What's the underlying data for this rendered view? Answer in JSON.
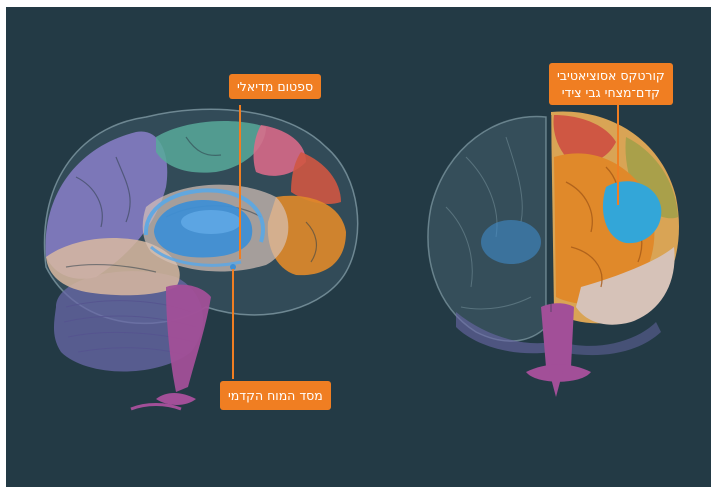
{
  "labels": {
    "medial_septum": "ספטום מדיאלי",
    "basal_forebrain": "מסד המוח הקדמי",
    "cortex_line1": "קורטקס אסוציאטיבי",
    "cortex_line2": "קדם־מצחי גבי צידי"
  },
  "colors": {
    "background": "#233a45",
    "label_fill": "#f07e22",
    "label_text": "#ffffff",
    "highlight_blue": "#3f8fd4",
    "frontal_orange": "#e0892a",
    "parietal_purple": "#8a7fc9",
    "brainstem_magenta": "#a24f98",
    "cerebellum_blue": "#6a68a8"
  }
}
